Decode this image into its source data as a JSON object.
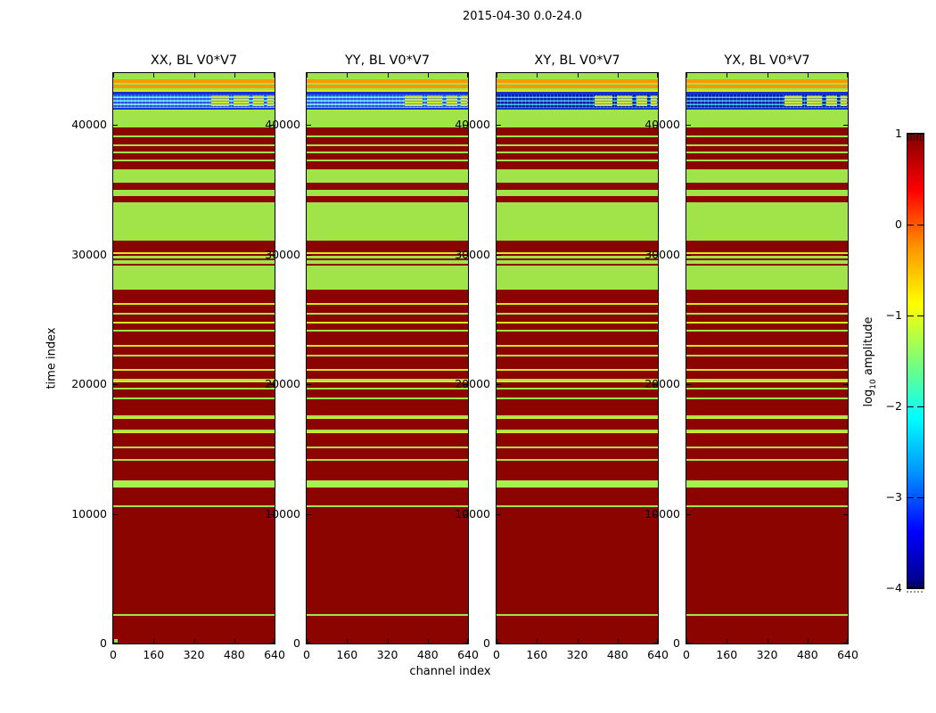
{
  "figure": {
    "title": "2015-04-30 0.0-24.0",
    "background": "#ffffff"
  },
  "axes": {
    "xlabel": "channel index",
    "ylabel": "time index",
    "x_tick_labels": [
      "0",
      "160",
      "320",
      "480",
      "640"
    ],
    "x_tick_values": [
      0,
      160,
      320,
      480,
      640
    ],
    "x_max": 640,
    "y_tick_labels": [
      "0",
      "10000",
      "20000",
      "30000",
      "40000"
    ],
    "y_tick_values": [
      0,
      10000,
      20000,
      30000,
      40000
    ],
    "y_max": 44000
  },
  "panels": [
    {
      "id": "xx",
      "title": "XX, BL V0*V7",
      "speckle": "light",
      "corner_dot": true
    },
    {
      "id": "yy",
      "title": "YY, BL V0*V7",
      "speckle": "light",
      "corner_dot": false
    },
    {
      "id": "xy",
      "title": "XY, BL V0*V7",
      "speckle": "dark",
      "corner_dot": false
    },
    {
      "id": "yx",
      "title": "YX, BL V0*V7",
      "speckle": "dark",
      "corner_dot": false
    }
  ],
  "colorbar": {
    "label_prefix": "log",
    "label_sub": "10",
    "label_suffix": " amplitude",
    "tick_labels": [
      "1",
      "0",
      "−1",
      "−2",
      "−3",
      "−4"
    ],
    "tick_values": [
      1,
      0,
      -1,
      -2,
      -3,
      -4
    ],
    "vmin": -4,
    "vmax": 1,
    "gradient": [
      [
        0,
        "#800000"
      ],
      [
        12.5,
        "#ff0000"
      ],
      [
        25,
        "#ff9400"
      ],
      [
        37.5,
        "#ffff00"
      ],
      [
        50,
        "#7dff76"
      ],
      [
        62.5,
        "#00ffff"
      ],
      [
        75,
        "#008fff"
      ],
      [
        87.5,
        "#0000ff"
      ],
      [
        100,
        "#000080"
      ]
    ]
  },
  "palette": {
    "red": "#8b0400",
    "green": "#a0e44a",
    "green2": "#a6f050",
    "orange": "#fb9902",
    "yellow": "#d9e821",
    "navy": "#1433cf",
    "corner_dot": "#8ce54a",
    "speckle_light": [
      "#2a52e8",
      "#3fc9e8",
      "#87dff2"
    ],
    "speckle_dark": [
      "#0a1fa8",
      "#1e6fd0",
      "#3fc9e8"
    ],
    "speckle_block": "#c8e74a",
    "speckle_block_rows": "rgba(20,60,200,0.4)"
  },
  "chart_data": {
    "type": "heatmap",
    "title": "2015-04-30 0.0-24.0",
    "xlabel": "channel index",
    "ylabel": "time index",
    "x_range": [
      0,
      640
    ],
    "y_range": [
      0,
      44000
    ],
    "colorbar_label": "log10 amplitude",
    "colorbar_range": [
      -4,
      1
    ],
    "colormap": "jet",
    "panels": [
      "XX, BL V0*V7",
      "YY, BL V0*V7",
      "XY, BL V0*V7",
      "YX, BL V0*V7"
    ],
    "legend_position": "right-colorbar",
    "grid": false,
    "bands_note": "horizontal bands of log10 amplitude vs time index, [time_top, time_bottom, color]; identical in all four panels; speckle = low-amplitude blue/cyan RFI band (darker blue in XY/YX)",
    "bands": [
      [
        44000,
        43500,
        "green"
      ],
      [
        43500,
        43230,
        "orange"
      ],
      [
        43230,
        43100,
        "green"
      ],
      [
        43100,
        42830,
        "orange"
      ],
      [
        42830,
        42690,
        "green"
      ],
      [
        42690,
        42550,
        "yellow"
      ],
      [
        42550,
        42350,
        "navy"
      ],
      [
        42350,
        41350,
        "speckle"
      ],
      [
        41350,
        41200,
        "navy"
      ],
      [
        41200,
        39800,
        "green"
      ],
      [
        39800,
        39190,
        "red"
      ],
      [
        39190,
        39050,
        "green"
      ],
      [
        39050,
        38500,
        "red"
      ],
      [
        38500,
        38360,
        "green"
      ],
      [
        38360,
        37950,
        "red"
      ],
      [
        37950,
        37810,
        "green"
      ],
      [
        37810,
        37330,
        "red"
      ],
      [
        37330,
        37190,
        "green"
      ],
      [
        37190,
        36580,
        "red"
      ],
      [
        36580,
        35540,
        "green"
      ],
      [
        35540,
        34990,
        "red"
      ],
      [
        34990,
        34510,
        "green"
      ],
      [
        34510,
        34030,
        "red"
      ],
      [
        34030,
        31080,
        "green"
      ],
      [
        31080,
        30180,
        "red"
      ],
      [
        30180,
        30040,
        "yellow"
      ],
      [
        30040,
        29900,
        "red"
      ],
      [
        29900,
        29700,
        "green"
      ],
      [
        29700,
        29560,
        "red"
      ],
      [
        29560,
        29290,
        "green"
      ],
      [
        29290,
        29150,
        "red"
      ],
      [
        29150,
        27290,
        "green"
      ],
      [
        27290,
        26260,
        "red"
      ],
      [
        26260,
        26120,
        "yellow"
      ],
      [
        26120,
        25500,
        "red"
      ],
      [
        25500,
        25360,
        "green"
      ],
      [
        25360,
        24850,
        "red"
      ],
      [
        24850,
        24710,
        "yellow"
      ],
      [
        24710,
        24200,
        "red"
      ],
      [
        24200,
        24060,
        "green"
      ],
      [
        24060,
        23000,
        "red"
      ],
      [
        23000,
        22860,
        "yellow"
      ],
      [
        22860,
        22300,
        "red"
      ],
      [
        22300,
        22160,
        "green"
      ],
      [
        22160,
        21200,
        "red"
      ],
      [
        21200,
        21060,
        "yellow"
      ],
      [
        21060,
        20400,
        "red"
      ],
      [
        20400,
        20260,
        "green"
      ],
      [
        20260,
        20120,
        "yellow"
      ],
      [
        20120,
        19700,
        "red"
      ],
      [
        19700,
        19560,
        "green"
      ],
      [
        19560,
        19000,
        "red"
      ],
      [
        19000,
        18860,
        "green"
      ],
      [
        18860,
        17600,
        "red"
      ],
      [
        17600,
        17460,
        "green"
      ],
      [
        17460,
        17320,
        "yellow"
      ],
      [
        17320,
        16500,
        "red"
      ],
      [
        16500,
        16360,
        "green"
      ],
      [
        16360,
        16220,
        "yellow"
      ],
      [
        16220,
        15200,
        "red"
      ],
      [
        15200,
        15060,
        "green"
      ],
      [
        15060,
        14200,
        "red"
      ],
      [
        14200,
        14060,
        "green"
      ],
      [
        14060,
        12550,
        "red"
      ],
      [
        12550,
        12050,
        "green2"
      ],
      [
        12050,
        10690,
        "red"
      ],
      [
        10690,
        10550,
        "green"
      ],
      [
        10550,
        2250,
        "red"
      ],
      [
        2250,
        2100,
        "green"
      ],
      [
        2100,
        0,
        "red"
      ]
    ],
    "speckle_blocks": [
      [
        0.605,
        0.72
      ],
      [
        0.745,
        0.84
      ],
      [
        0.865,
        0.935
      ],
      [
        0.955,
        0.995
      ]
    ]
  }
}
